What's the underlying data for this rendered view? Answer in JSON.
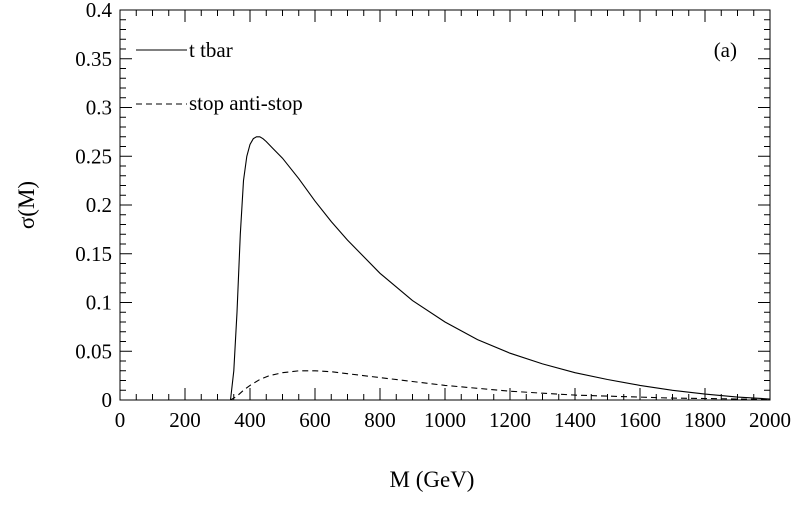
{
  "chart_data": {
    "type": "line",
    "title": "",
    "xlabel": "M (GeV)",
    "ylabel": "σ(M)",
    "panel_label": "(a)",
    "xlim": [
      0,
      2000
    ],
    "ylim": [
      0,
      0.4
    ],
    "x_ticks": [
      0,
      200,
      400,
      600,
      800,
      1000,
      1200,
      1400,
      1600,
      1800,
      2000
    ],
    "x_tick_labels": [
      "0",
      "200",
      "400",
      "600",
      "800",
      "1000",
      "1200",
      "1400",
      "1600",
      "1800",
      "2000"
    ],
    "y_ticks": [
      0,
      0.05,
      0.1,
      0.15,
      0.2,
      0.25,
      0.3,
      0.35,
      0.4
    ],
    "y_tick_labels": [
      "0",
      "0.05",
      "0.1",
      "0.15",
      "0.2",
      "0.25",
      "0.3",
      "0.35",
      "0.4"
    ],
    "grid": false,
    "legend_position": "top-left",
    "series": [
      {
        "name": "t tbar",
        "style": "solid",
        "x": [
          0,
          300,
          340,
          350,
          360,
          370,
          380,
          390,
          400,
          410,
          420,
          430,
          440,
          450,
          470,
          500,
          550,
          600,
          650,
          700,
          800,
          900,
          1000,
          1100,
          1200,
          1300,
          1400,
          1500,
          1600,
          1700,
          1800,
          1900,
          2000
        ],
        "y": [
          0,
          0,
          0,
          0.03,
          0.09,
          0.17,
          0.225,
          0.25,
          0.262,
          0.268,
          0.27,
          0.27,
          0.268,
          0.265,
          0.258,
          0.248,
          0.227,
          0.204,
          0.183,
          0.164,
          0.13,
          0.102,
          0.08,
          0.062,
          0.048,
          0.037,
          0.028,
          0.021,
          0.015,
          0.01,
          0.006,
          0.003,
          0.001
        ]
      },
      {
        "name": "stop anti-stop",
        "style": "dashed",
        "x": [
          0,
          300,
          340,
          360,
          380,
          400,
          430,
          460,
          500,
          550,
          600,
          650,
          700,
          800,
          900,
          1000,
          1100,
          1200,
          1300,
          1400,
          1500,
          1600,
          1700,
          1800,
          1900,
          2000
        ],
        "y": [
          0,
          0,
          0,
          0.004,
          0.01,
          0.015,
          0.021,
          0.025,
          0.028,
          0.03,
          0.03,
          0.029,
          0.027,
          0.023,
          0.019,
          0.015,
          0.012,
          0.009,
          0.007,
          0.005,
          0.004,
          0.003,
          0.002,
          0.0015,
          0.001,
          0.0005
        ]
      }
    ]
  }
}
